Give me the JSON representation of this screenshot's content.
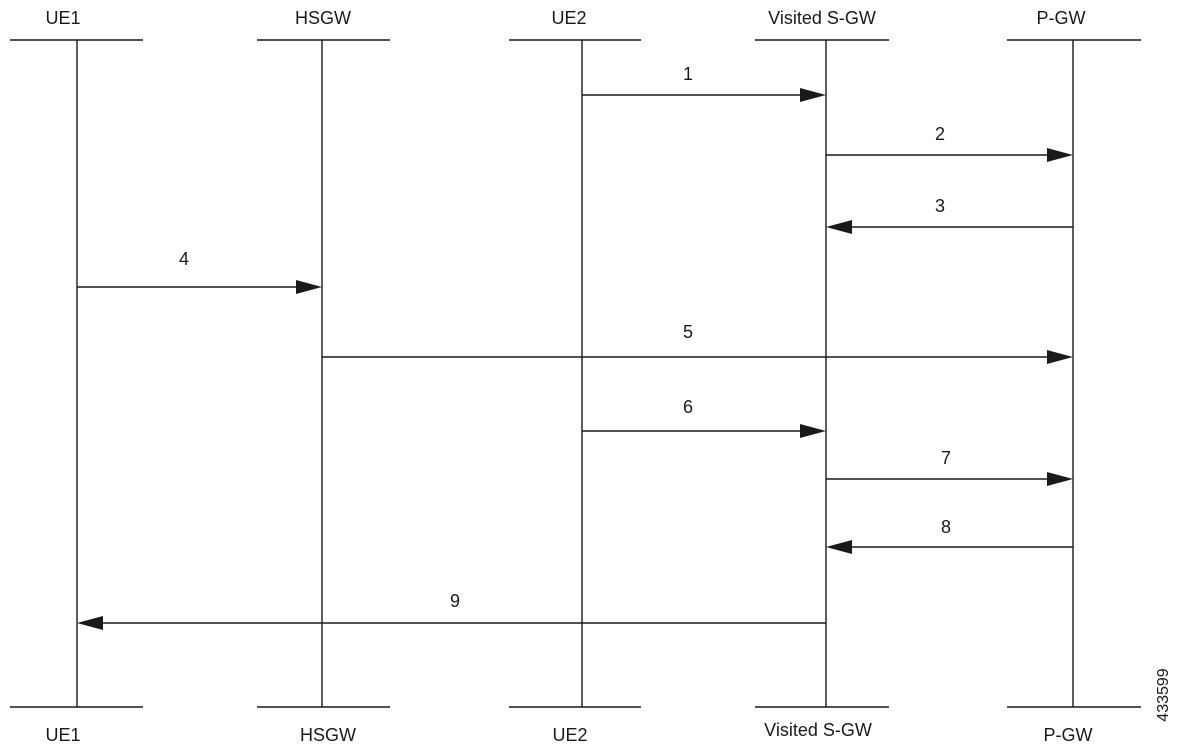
{
  "participants": [
    {
      "id": "ue1",
      "label": "UE1"
    },
    {
      "id": "hsgw",
      "label": "HSGW"
    },
    {
      "id": "ue2",
      "label": "UE2"
    },
    {
      "id": "vsgw",
      "label": "Visited S-GW"
    },
    {
      "id": "pgw",
      "label": "P-GW"
    }
  ],
  "messages": [
    {
      "label": "1",
      "from": "ue2",
      "to": "vsgw"
    },
    {
      "label": "2",
      "from": "vsgw",
      "to": "pgw"
    },
    {
      "label": "3",
      "from": "pgw",
      "to": "vsgw"
    },
    {
      "label": "4",
      "from": "ue1",
      "to": "hsgw"
    },
    {
      "label": "5",
      "from": "hsgw",
      "to": "pgw"
    },
    {
      "label": "6",
      "from": "ue2",
      "to": "vsgw"
    },
    {
      "label": "7",
      "from": "vsgw",
      "to": "pgw"
    },
    {
      "label": "8",
      "from": "pgw",
      "to": "vsgw"
    },
    {
      "label": "9",
      "from": "vsgw",
      "to": "ue1"
    }
  ],
  "figure_id": "433599",
  "colors": {
    "line": "#1a1a1a",
    "background": "#ffffff"
  }
}
